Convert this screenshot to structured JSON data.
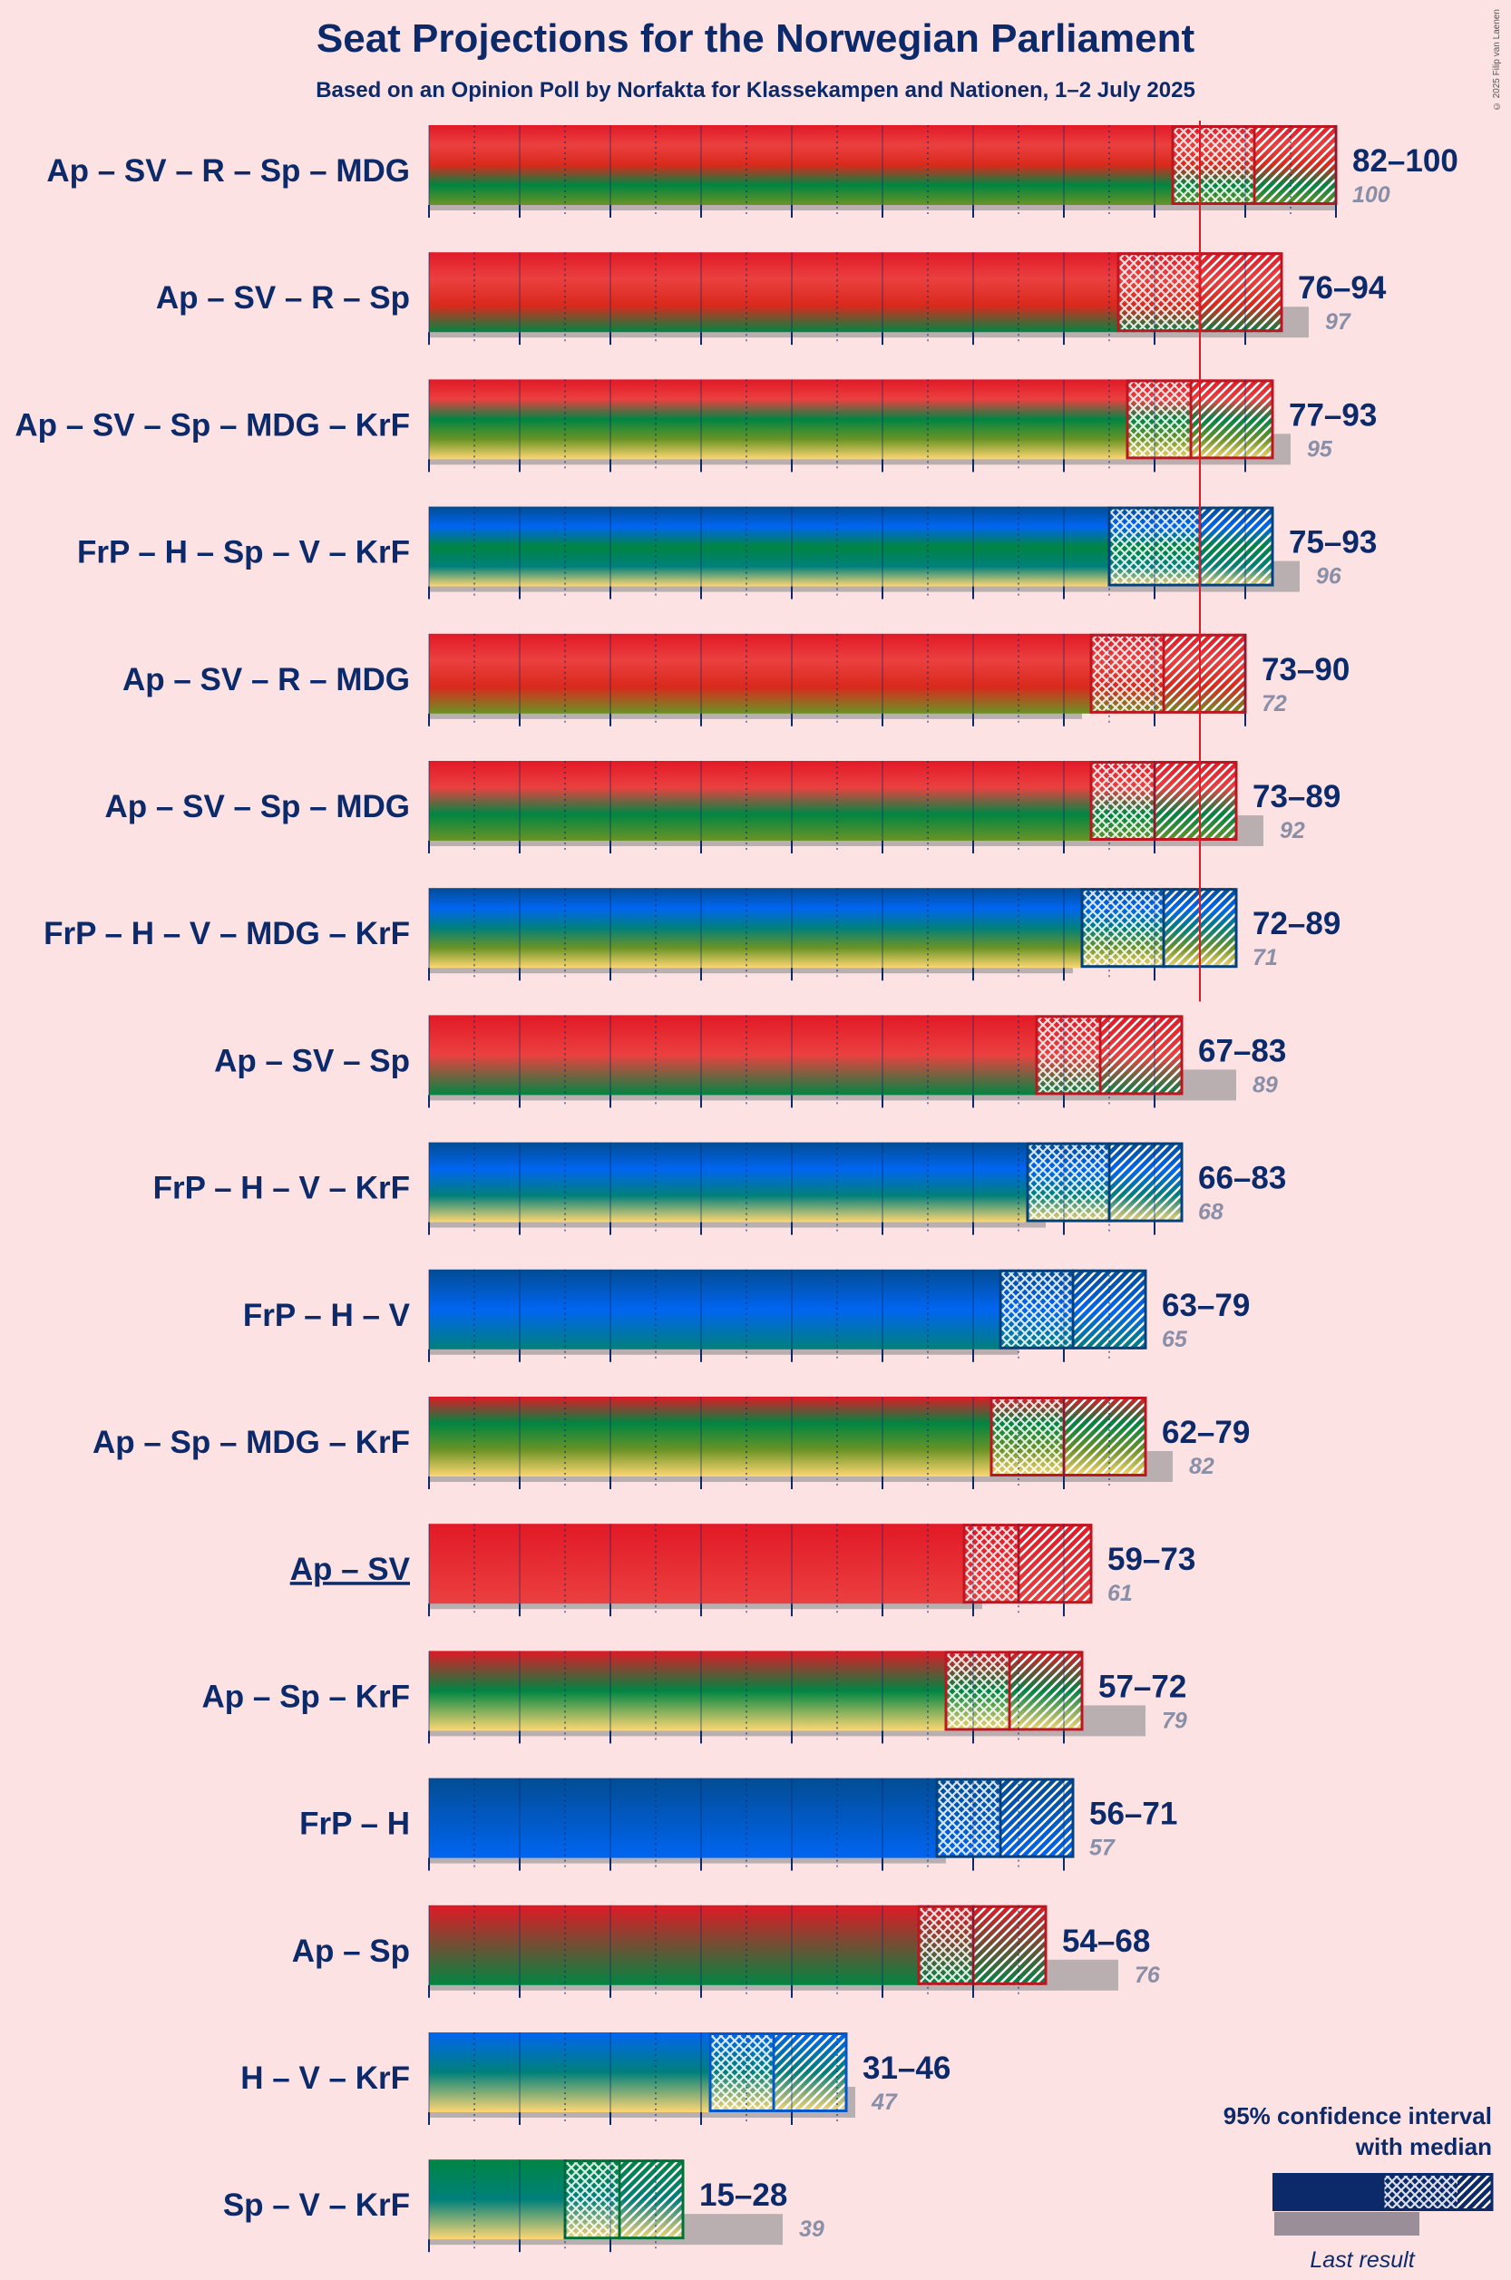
{
  "title": "Seat Projections for the Norwegian Parliament",
  "subtitle": "Based on an Opinion Poll by Norfakta for Klassekampen and Nationen, 1–2 July 2025",
  "copyright": "© 2025 Filip van Laenen",
  "legend": {
    "ci_label_line1": "95% confidence interval",
    "ci_label_line2": "with median",
    "last_result_label": "Last result"
  },
  "party_colors": {
    "Ap": "#e11926",
    "SV": "#eb4040",
    "R": "#da291c",
    "Sp": "#008542",
    "MDG": "#6a9325",
    "KrF": "#ffd773",
    "FrP": "#024c93",
    "H": "#0065f1",
    "V": "#00807b"
  },
  "chart_data": {
    "type": "bar",
    "majority": 85,
    "x_max": 100,
    "coalitions": [
      {
        "label": "Ap – SV – R – Sp – MDG",
        "parties": [
          "Ap",
          "SV",
          "R",
          "Sp",
          "MDG"
        ],
        "low": 82,
        "median": 91,
        "high": 100,
        "last": 100,
        "range_text": "82–100",
        "last_text": "100",
        "underline": false
      },
      {
        "label": "Ap – SV – R – Sp",
        "parties": [
          "Ap",
          "SV",
          "R",
          "Sp"
        ],
        "low": 76,
        "median": 85,
        "high": 94,
        "last": 97,
        "range_text": "76–94",
        "last_text": "97",
        "underline": false
      },
      {
        "label": "Ap – SV – Sp – MDG – KrF",
        "parties": [
          "Ap",
          "SV",
          "Sp",
          "MDG",
          "KrF"
        ],
        "low": 77,
        "median": 84,
        "high": 93,
        "last": 95,
        "range_text": "77–93",
        "last_text": "95",
        "underline": false
      },
      {
        "label": "FrP – H – Sp – V – KrF",
        "parties": [
          "FrP",
          "H",
          "Sp",
          "V",
          "KrF"
        ],
        "low": 75,
        "median": 85,
        "high": 93,
        "last": 96,
        "range_text": "75–93",
        "last_text": "96",
        "underline": false
      },
      {
        "label": "Ap – SV – R – MDG",
        "parties": [
          "Ap",
          "SV",
          "R",
          "MDG"
        ],
        "low": 73,
        "median": 81,
        "high": 90,
        "last": 72,
        "range_text": "73–90",
        "last_text": "72",
        "underline": false
      },
      {
        "label": "Ap – SV – Sp – MDG",
        "parties": [
          "Ap",
          "SV",
          "Sp",
          "MDG"
        ],
        "low": 73,
        "median": 80,
        "high": 89,
        "last": 92,
        "range_text": "73–89",
        "last_text": "92",
        "underline": false
      },
      {
        "label": "FrP – H – V – MDG – KrF",
        "parties": [
          "FrP",
          "H",
          "V",
          "MDG",
          "KrF"
        ],
        "low": 72,
        "median": 81,
        "high": 89,
        "last": 71,
        "range_text": "72–89",
        "last_text": "71",
        "underline": false
      },
      {
        "label": "Ap – SV – Sp",
        "parties": [
          "Ap",
          "SV",
          "Sp"
        ],
        "low": 67,
        "median": 74,
        "high": 83,
        "last": 89,
        "range_text": "67–83",
        "last_text": "89",
        "underline": false
      },
      {
        "label": "FrP – H – V – KrF",
        "parties": [
          "FrP",
          "H",
          "V",
          "KrF"
        ],
        "low": 66,
        "median": 75,
        "high": 83,
        "last": 68,
        "range_text": "66–83",
        "last_text": "68",
        "underline": false
      },
      {
        "label": "FrP – H – V",
        "parties": [
          "FrP",
          "H",
          "V"
        ],
        "low": 63,
        "median": 71,
        "high": 79,
        "last": 65,
        "range_text": "63–79",
        "last_text": "65",
        "underline": false
      },
      {
        "label": "Ap – Sp – MDG – KrF",
        "parties": [
          "Ap",
          "Sp",
          "MDG",
          "KrF"
        ],
        "low": 62,
        "median": 70,
        "high": 79,
        "last": 82,
        "range_text": "62–79",
        "last_text": "82",
        "underline": false
      },
      {
        "label": "Ap – SV",
        "parties": [
          "Ap",
          "SV"
        ],
        "low": 59,
        "median": 65,
        "high": 73,
        "last": 61,
        "range_text": "59–73",
        "last_text": "61",
        "underline": true
      },
      {
        "label": "Ap – Sp – KrF",
        "parties": [
          "Ap",
          "Sp",
          "KrF"
        ],
        "low": 57,
        "median": 64,
        "high": 72,
        "last": 79,
        "range_text": "57–72",
        "last_text": "79",
        "underline": false
      },
      {
        "label": "FrP – H",
        "parties": [
          "FrP",
          "H"
        ],
        "low": 56,
        "median": 63,
        "high": 71,
        "last": 57,
        "range_text": "56–71",
        "last_text": "57",
        "underline": false
      },
      {
        "label": "Ap – Sp",
        "parties": [
          "Ap",
          "Sp"
        ],
        "low": 54,
        "median": 60,
        "high": 68,
        "last": 76,
        "range_text": "54–68",
        "last_text": "76",
        "underline": false
      },
      {
        "label": "H – V – KrF",
        "parties": [
          "H",
          "V",
          "KrF"
        ],
        "low": 31,
        "median": 38,
        "high": 46,
        "last": 47,
        "range_text": "31–46",
        "last_text": "47",
        "underline": false
      },
      {
        "label": "Sp – V – KrF",
        "parties": [
          "Sp",
          "V",
          "KrF"
        ],
        "low": 15,
        "median": 21,
        "high": 28,
        "last": 39,
        "range_text": "15–28",
        "last_text": "39",
        "underline": false
      }
    ]
  }
}
